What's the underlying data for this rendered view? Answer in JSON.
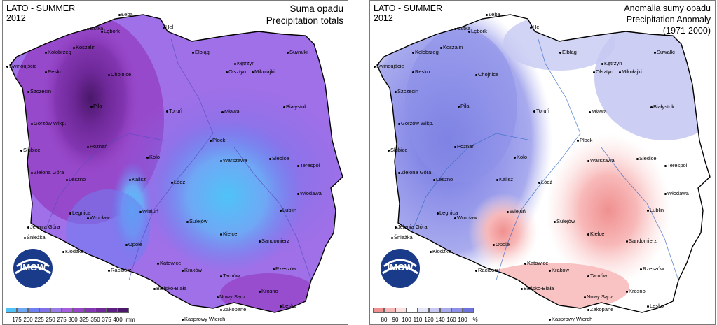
{
  "left_map": {
    "season_label": "LATO - SUMMER",
    "year": "2012",
    "title_pl": "Suma opadu",
    "title_en": "Precipitation totals",
    "legend_values": [
      "175",
      "200",
      "225",
      "250",
      "275",
      "300",
      "325",
      "350",
      "375",
      "400"
    ],
    "legend_unit": "mm",
    "legend_colors": [
      "#4fc3f7",
      "#6fa8f5",
      "#6f7ef0",
      "#7f6fe8",
      "#9a7ce6",
      "#a65ee0",
      "#9645c8",
      "#8235b0",
      "#6e2898",
      "#5c1e80",
      "#4a176a"
    ],
    "logo_text": "IMGW"
  },
  "right_map": {
    "season_label": "LATO - SUMMER",
    "year": "2012",
    "title_pl": "Anomalia sumy opadu",
    "title_en": "Precipitation Anomaly",
    "title_period": "(1971-2000)",
    "legend_values": [
      "80",
      "90",
      "100",
      "110",
      "120",
      "140",
      "160",
      "180"
    ],
    "legend_unit": "%",
    "legend_colors": [
      "#f09090",
      "#f8b8b8",
      "#fde0e0",
      "#ffffff",
      "#e6e6fb",
      "#c7c9f3",
      "#a9abee",
      "#8d90e8",
      "#6e72dd"
    ],
    "logo_text": "IMGW"
  },
  "cities": [
    {
      "name": "Hel"
    },
    {
      "name": "Łeba"
    },
    {
      "name": "Ustka"
    },
    {
      "name": "Lębork"
    },
    {
      "name": "Koszalin"
    },
    {
      "name": "Kołobrzeg"
    },
    {
      "name": "Świnoujście"
    },
    {
      "name": "Resko"
    },
    {
      "name": "Chojnice"
    },
    {
      "name": "Elbląg"
    },
    {
      "name": "Kętrzyn"
    },
    {
      "name": "Suwałki"
    },
    {
      "name": "Olsztyn"
    },
    {
      "name": "Mikołajki"
    },
    {
      "name": "Szczecin"
    },
    {
      "name": "Piła"
    },
    {
      "name": "Toruń"
    },
    {
      "name": "Mława"
    },
    {
      "name": "Białystok"
    },
    {
      "name": "Gorzów Wlkp."
    },
    {
      "name": "Płock"
    },
    {
      "name": "Poznań"
    },
    {
      "name": "Słubice"
    },
    {
      "name": "Koło"
    },
    {
      "name": "Warszawa"
    },
    {
      "name": "Siedlce"
    },
    {
      "name": "Terespol"
    },
    {
      "name": "Zielona Góra"
    },
    {
      "name": "Leszno"
    },
    {
      "name": "Kalisz"
    },
    {
      "name": "Łódź"
    },
    {
      "name": "Włodawa"
    },
    {
      "name": "Sulejów"
    },
    {
      "name": "Lublin"
    },
    {
      "name": "Legnica"
    },
    {
      "name": "Wieluń"
    },
    {
      "name": "Wrocław"
    },
    {
      "name": "Jelenia Góra"
    },
    {
      "name": "Kielce"
    },
    {
      "name": "Śnieżka"
    },
    {
      "name": "Opole"
    },
    {
      "name": "Sandomierz"
    },
    {
      "name": "Kłodzko"
    },
    {
      "name": "Katowice"
    },
    {
      "name": "Racibórz"
    },
    {
      "name": "Kraków"
    },
    {
      "name": "Tarnów"
    },
    {
      "name": "Rzeszów"
    },
    {
      "name": "Bielsko-Biała"
    },
    {
      "name": "Krosno"
    },
    {
      "name": "Nowy Sącz"
    },
    {
      "name": "Lesko"
    },
    {
      "name": "Zakopane"
    },
    {
      "name": "Kasprowy Wierch"
    }
  ]
}
